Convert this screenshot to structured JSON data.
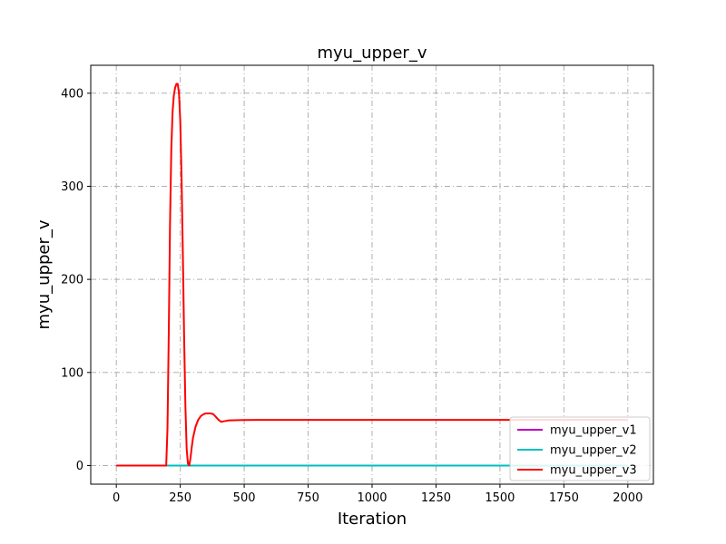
{
  "chart_data": {
    "type": "line",
    "title": "myu_upper_v",
    "xlabel": "Iteration",
    "ylabel": "myu_upper_v",
    "xlim": [
      -100,
      2100
    ],
    "ylim": [
      -20,
      430
    ],
    "xticks": [
      0,
      250,
      500,
      750,
      1000,
      1250,
      1500,
      1750,
      2000
    ],
    "yticks": [
      0,
      100,
      200,
      300,
      400
    ],
    "grid": true,
    "legend_position": "lower-right",
    "series": [
      {
        "name": "myu_upper_v1",
        "color": "#bf00bf",
        "x": [
          0,
          2000
        ],
        "y": [
          0,
          0
        ]
      },
      {
        "name": "myu_upper_v2",
        "color": "#00bfbf",
        "x": [
          0,
          2000
        ],
        "y": [
          0,
          0
        ]
      },
      {
        "name": "myu_upper_v3",
        "color": "#ff0000",
        "x": [
          0,
          195,
          200,
          205,
          210,
          215,
          220,
          225,
          230,
          235,
          240,
          245,
          250,
          255,
          260,
          265,
          270,
          275,
          280,
          285,
          290,
          295,
          300,
          310,
          320,
          330,
          340,
          350,
          360,
          370,
          380,
          390,
          400,
          410,
          420,
          430,
          440,
          460,
          480,
          500,
          550,
          600,
          800,
          1000,
          1250,
          1500,
          1750,
          2000
        ],
        "y": [
          0,
          0,
          40,
          140,
          260,
          340,
          380,
          398,
          406,
          410,
          410,
          400,
          370,
          310,
          230,
          140,
          65,
          18,
          2,
          0,
          8,
          20,
          30,
          42,
          49,
          53,
          55,
          56,
          56,
          56,
          55,
          52,
          49,
          47,
          47.5,
          48,
          48.5,
          48.7,
          48.8,
          48.9,
          49,
          49,
          49,
          49,
          49,
          49,
          49,
          49
        ]
      }
    ]
  }
}
